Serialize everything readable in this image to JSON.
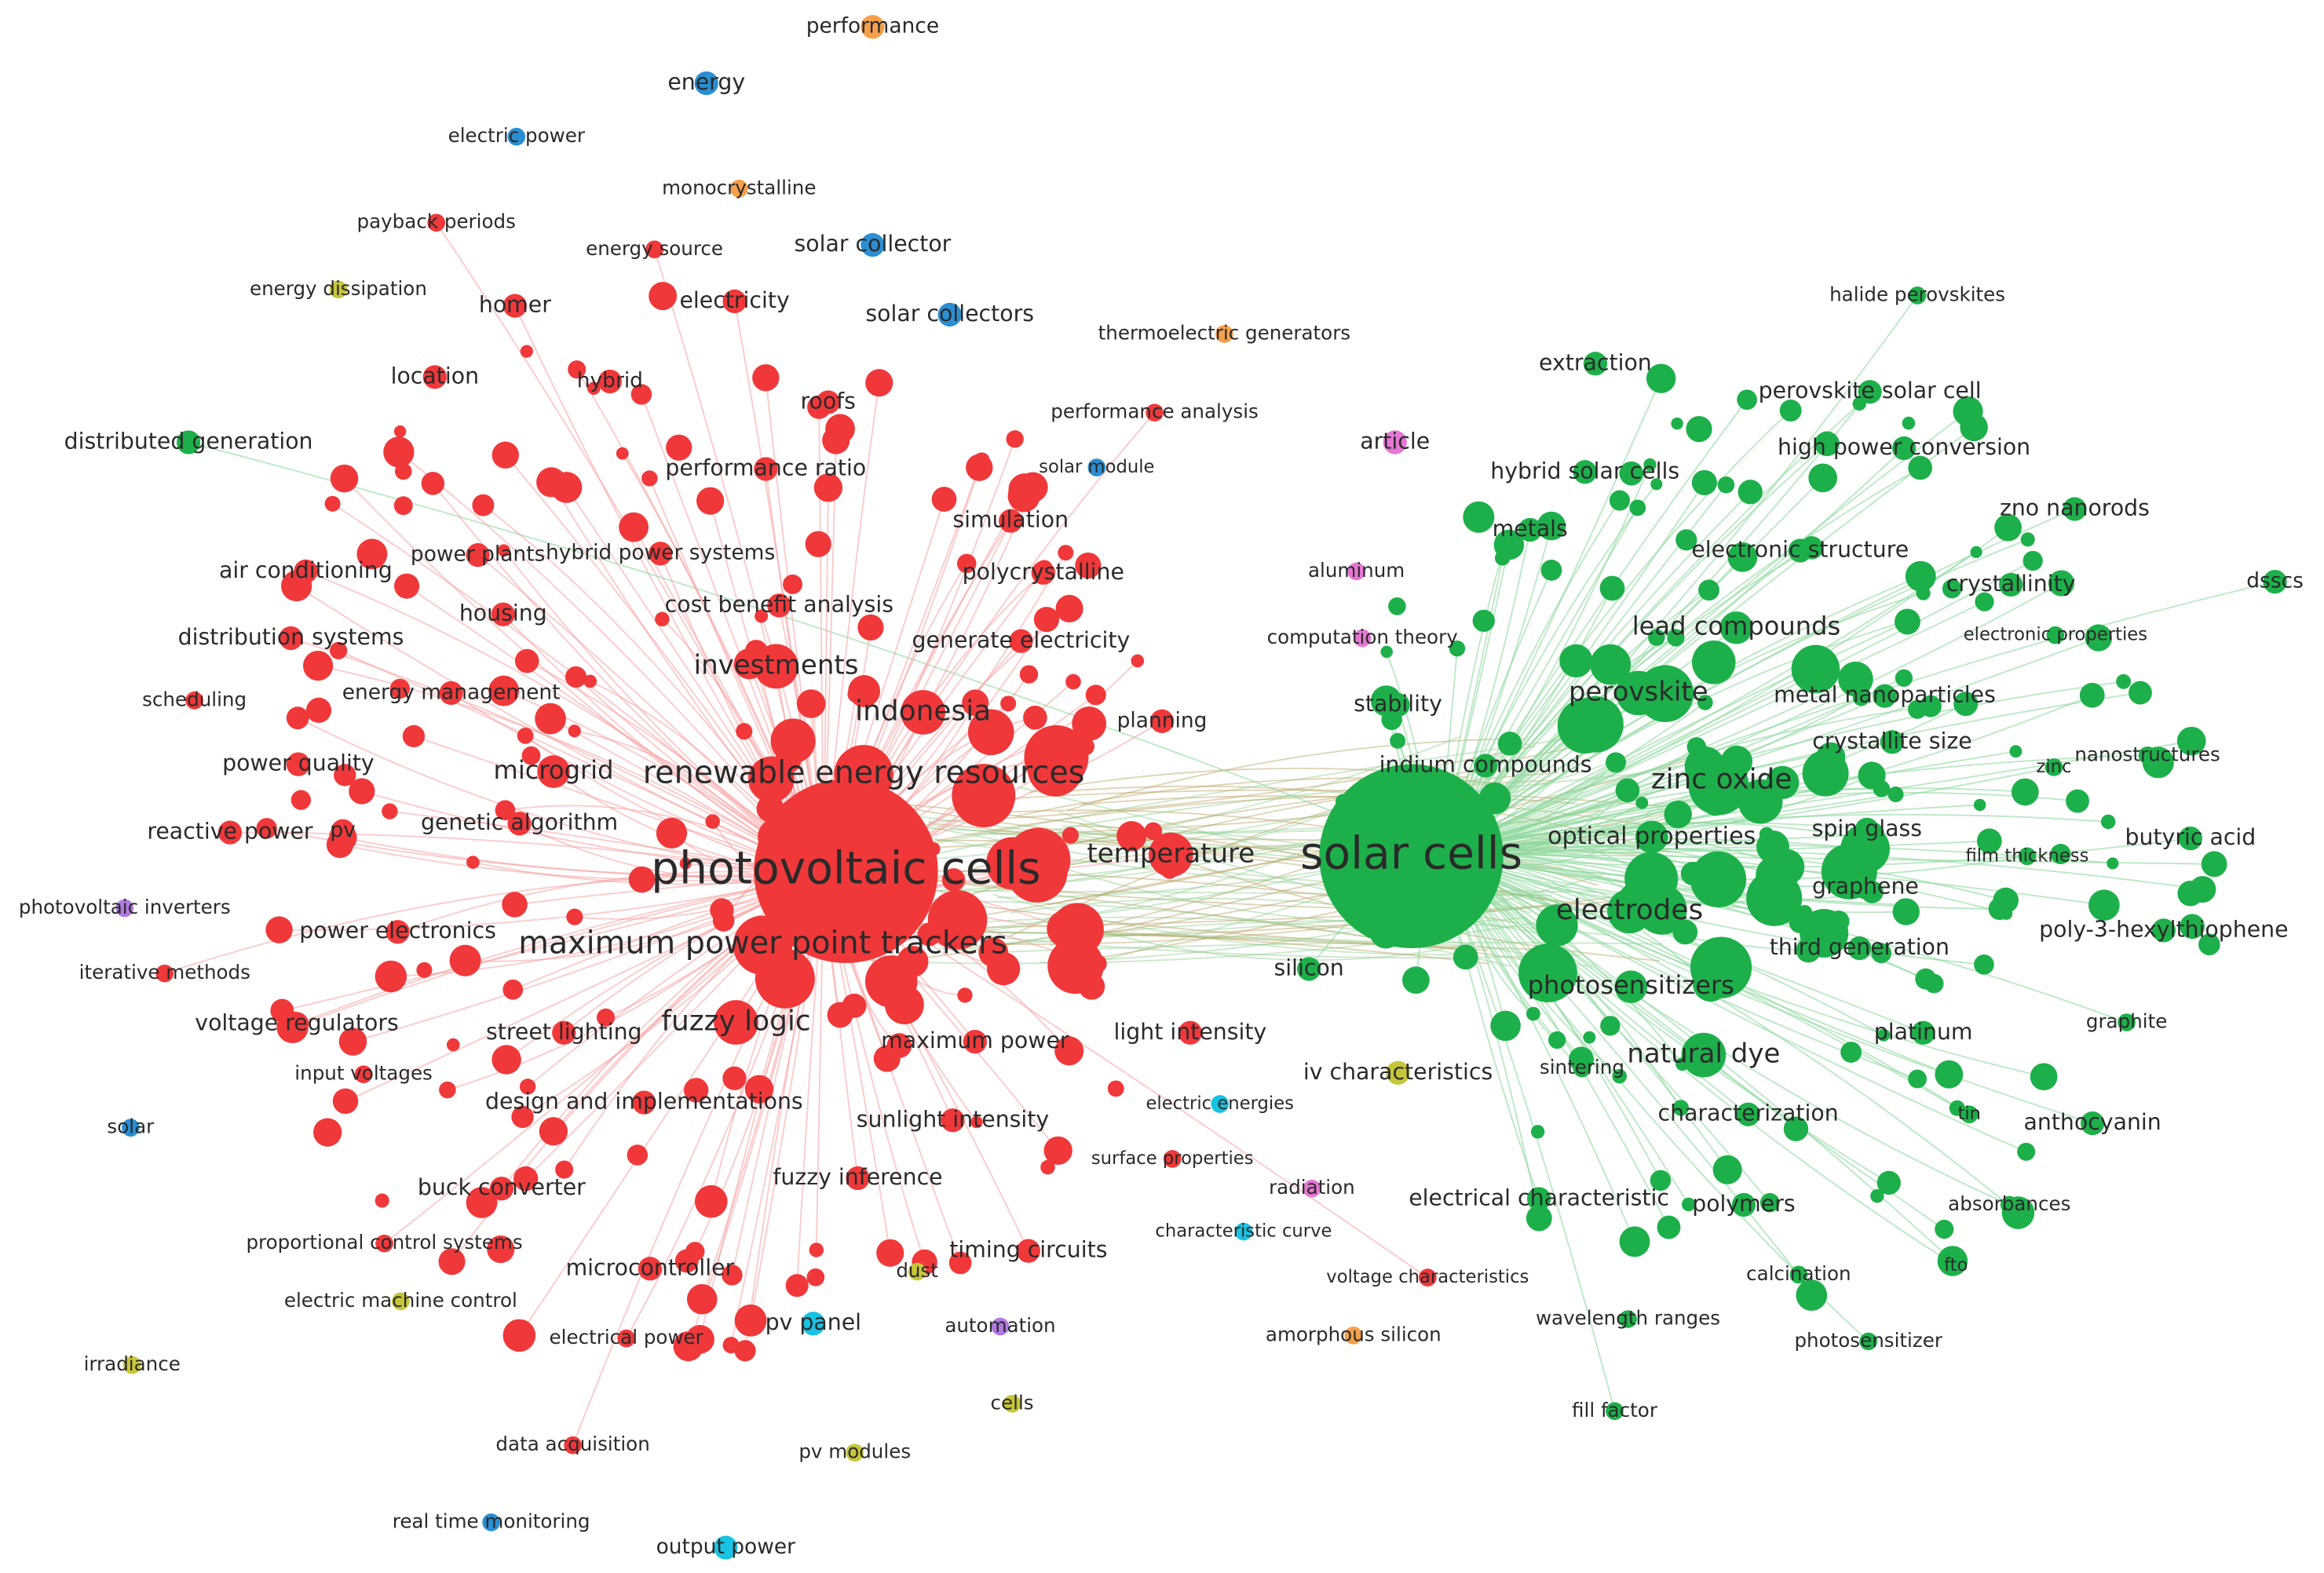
{
  "nodes": [
    {
      "label": "performance"
    },
    {
      "label": "energy"
    },
    {
      "label": "electric power"
    },
    {
      "label": "monocrystalline"
    },
    {
      "label": "payback periods"
    },
    {
      "label": "energy source"
    },
    {
      "label": "solar collector"
    },
    {
      "label": "energy dissipation"
    },
    {
      "label": "homer"
    },
    {
      "label": "electricity"
    },
    {
      "label": "solar collectors"
    },
    {
      "label": "thermoelectric generators"
    },
    {
      "label": "location"
    },
    {
      "label": "hybrid"
    },
    {
      "label": "roofs"
    },
    {
      "label": "performance analysis"
    },
    {
      "label": "distributed generation"
    },
    {
      "label": "article"
    },
    {
      "label": "performance ratio"
    },
    {
      "label": "solar module"
    },
    {
      "label": "simulation"
    },
    {
      "label": "power plants"
    },
    {
      "label": "hybrid power systems"
    },
    {
      "label": "polycrystalline"
    },
    {
      "label": "air conditioning"
    },
    {
      "label": "aluminum"
    },
    {
      "label": "cost benefit analysis"
    },
    {
      "label": "housing"
    },
    {
      "label": "distribution systems"
    },
    {
      "label": "computation theory"
    },
    {
      "label": "generate electricity"
    },
    {
      "label": "investments"
    },
    {
      "label": "scheduling"
    },
    {
      "label": "energy management"
    },
    {
      "label": "stability"
    },
    {
      "label": "indonesia"
    },
    {
      "label": "planning"
    },
    {
      "label": "power quality"
    },
    {
      "label": "microgrid"
    },
    {
      "label": "renewable energy resources"
    },
    {
      "label": "genetic algorithm"
    },
    {
      "label": "reactive power"
    },
    {
      "label": "pv"
    },
    {
      "label": "temperature"
    },
    {
      "label": "photovoltaic cells"
    },
    {
      "label": "solar cells"
    },
    {
      "label": "photovoltaic inverters"
    },
    {
      "label": "power electronics"
    },
    {
      "label": "maximum power point trackers"
    },
    {
      "label": "iterative methods"
    },
    {
      "label": "silicon"
    },
    {
      "label": "voltage regulators"
    },
    {
      "label": "fuzzy logic"
    },
    {
      "label": "street lighting"
    },
    {
      "label": "maximum power"
    },
    {
      "label": "light intensity"
    },
    {
      "label": "input voltages"
    },
    {
      "label": "iv characteristics"
    },
    {
      "label": "design and implementations"
    },
    {
      "label": "electric energies"
    },
    {
      "label": "solar"
    },
    {
      "label": "sunlight intensity"
    },
    {
      "label": "surface properties"
    },
    {
      "label": "buck converter"
    },
    {
      "label": "fuzzy inference"
    },
    {
      "label": "radiation"
    },
    {
      "label": "electrical characteristic"
    },
    {
      "label": "proportional control systems"
    },
    {
      "label": "characteristic curve"
    },
    {
      "label": "timing circuits"
    },
    {
      "label": "microcontroller"
    },
    {
      "label": "dust"
    },
    {
      "label": "voltage characteristics"
    },
    {
      "label": "electric machine control"
    },
    {
      "label": "pv panel"
    },
    {
      "label": "automation"
    },
    {
      "label": "electrical power"
    },
    {
      "label": "amorphous silicon"
    },
    {
      "label": "irradiance"
    },
    {
      "label": "cells"
    },
    {
      "label": "data acquisition"
    },
    {
      "label": "pv modules"
    },
    {
      "label": "real time monitoring"
    },
    {
      "label": "output power"
    },
    {
      "label": "halide perovskites"
    },
    {
      "label": "extraction"
    },
    {
      "label": "perovskite solar cell"
    },
    {
      "label": "high power conversion"
    },
    {
      "label": "hybrid solar cells"
    },
    {
      "label": "zno nanorods"
    },
    {
      "label": "metals"
    },
    {
      "label": "electronic structure"
    },
    {
      "label": "crystallinity"
    },
    {
      "label": "dsscs"
    },
    {
      "label": "lead compounds"
    },
    {
      "label": "electronic properties"
    },
    {
      "label": "perovskite"
    },
    {
      "label": "metal nanoparticles"
    },
    {
      "label": "crystallite size"
    },
    {
      "label": "nanostructures"
    },
    {
      "label": "zinc"
    },
    {
      "label": "indium compounds"
    },
    {
      "label": "zinc oxide"
    },
    {
      "label": "spin glass"
    },
    {
      "label": "optical properties"
    },
    {
      "label": "butyric acid"
    },
    {
      "label": "film thickness"
    },
    {
      "label": "graphene"
    },
    {
      "label": "electrodes"
    },
    {
      "label": "poly-3-hexylthiophene"
    },
    {
      "label": "third generation"
    },
    {
      "label": "photosensitizers"
    },
    {
      "label": "platinum"
    },
    {
      "label": "graphite"
    },
    {
      "label": "natural dye"
    },
    {
      "label": "sintering"
    },
    {
      "label": "characterization"
    },
    {
      "label": "tin"
    },
    {
      "label": "anthocyanin"
    },
    {
      "label": "polymers"
    },
    {
      "label": "absorbances"
    },
    {
      "label": "calcination"
    },
    {
      "label": "fto"
    },
    {
      "label": "wavelength ranges"
    },
    {
      "label": "photosensitizer"
    },
    {
      "label": "fill factor"
    }
  ]
}
